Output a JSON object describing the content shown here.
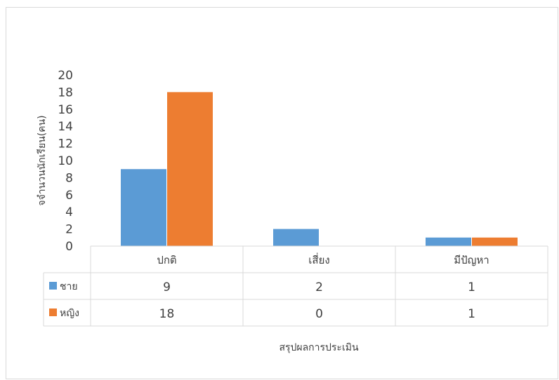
{
  "chart_data": {
    "type": "bar",
    "categories": [
      "ปกติ",
      "เสี่ยง",
      "มีปัญหา"
    ],
    "series": [
      {
        "name": "ชาย",
        "values": [
          9,
          2,
          1
        ],
        "color": "#5b9bd5"
      },
      {
        "name": "หญิง",
        "values": [
          18,
          0,
          1
        ],
        "color": "#ed7d31"
      }
    ],
    "ylim": [
      0,
      20
    ],
    "yticks": [
      0,
      2,
      4,
      6,
      8,
      10,
      12,
      14,
      16,
      18,
      20
    ],
    "ylabel": "จจำนวนนักเรียน(คน)",
    "xlabel": "สรุปผลการประเมิน",
    "data_table": true,
    "legend": "data-table",
    "grid": false
  }
}
